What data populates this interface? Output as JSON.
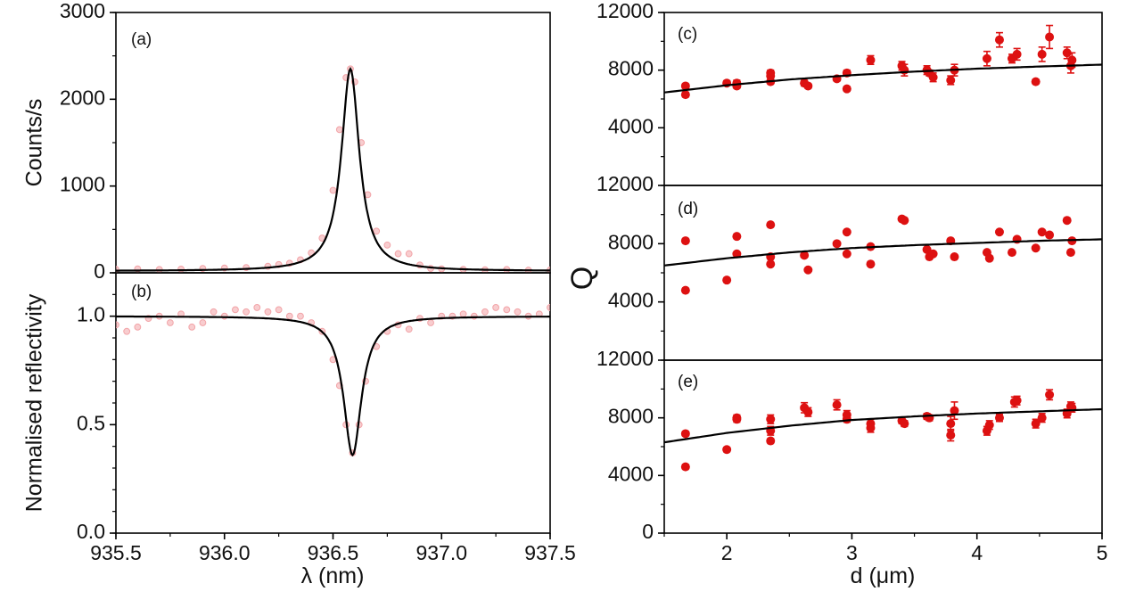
{
  "colors": {
    "data_red": "#dd1111",
    "data_pink": "#f2a4a8",
    "fit": "#000000",
    "axis": "#000000"
  },
  "chart_data": [
    {
      "id": "a",
      "panel_label": "(a)",
      "type": "line",
      "ylabel": "Counts/s",
      "xlim": [
        935.5,
        937.5
      ],
      "ylim": [
        0,
        3000
      ],
      "yticks": [
        0,
        1000,
        2000,
        3000
      ],
      "ytick_labels": [
        "0",
        "1000",
        "2000",
        "3000"
      ],
      "fit": {
        "model": "lorentzian",
        "center": 936.58,
        "fwhm": 0.1,
        "peak": 2350,
        "baseline": 20
      },
      "series": [
        {
          "name": "measured",
          "style": "pink circles",
          "x": [
            935.5,
            935.6,
            935.7,
            935.8,
            935.9,
            936.0,
            936.1,
            936.2,
            936.25,
            936.3,
            936.35,
            936.4,
            936.45,
            936.5,
            936.53,
            936.56,
            936.58,
            936.6,
            936.63,
            936.66,
            936.7,
            936.75,
            936.8,
            936.85,
            936.9,
            936.95,
            937.0,
            937.1,
            937.2,
            937.3,
            937.4,
            937.5
          ],
          "y": [
            40,
            45,
            38,
            42,
            50,
            55,
            60,
            75,
            95,
            110,
            150,
            230,
            400,
            950,
            1650,
            2250,
            2350,
            2200,
            1500,
            900,
            480,
            320,
            220,
            220,
            90,
            50,
            45,
            40,
            35,
            38,
            30,
            32
          ]
        }
      ]
    },
    {
      "id": "b",
      "panel_label": "(b)",
      "type": "line",
      "ylabel": "Normalised reflectivity",
      "xlabel": "λ (nm)",
      "xlim": [
        935.5,
        937.5
      ],
      "ylim": [
        0,
        1.2
      ],
      "yticks": [
        0,
        0.5,
        1.0
      ],
      "ytick_labels": [
        "0.0",
        "0.5",
        "1.0"
      ],
      "xticks": [
        935.5,
        936.0,
        936.5,
        937.0,
        937.5
      ],
      "xtick_labels": [
        "935.5",
        "936.0",
        "936.5",
        "937.0",
        "937.5"
      ],
      "fit": {
        "model": "lorentzian dip",
        "center": 936.59,
        "fwhm": 0.1,
        "depth": 0.64,
        "baseline": 1.0
      },
      "series": [
        {
          "name": "measured",
          "style": "pink circles",
          "x": [
            935.5,
            935.55,
            935.6,
            935.65,
            935.7,
            935.75,
            935.8,
            935.85,
            935.9,
            935.95,
            936.0,
            936.05,
            936.1,
            936.15,
            936.2,
            936.25,
            936.3,
            936.35,
            936.4,
            936.45,
            936.5,
            936.53,
            936.56,
            936.59,
            936.62,
            936.65,
            936.7,
            936.75,
            936.8,
            936.85,
            936.9,
            936.95,
            937.0,
            937.05,
            937.1,
            937.15,
            937.2,
            937.25,
            937.3,
            937.35,
            937.4,
            937.45,
            937.5
          ],
          "y": [
            0.96,
            0.93,
            0.95,
            0.99,
            1.0,
            0.97,
            1.01,
            0.95,
            0.97,
            1.02,
            1.0,
            1.03,
            1.02,
            1.04,
            1.02,
            1.03,
            1.0,
            1.0,
            0.97,
            0.93,
            0.8,
            0.68,
            0.5,
            0.37,
            0.5,
            0.7,
            0.86,
            0.93,
            0.96,
            0.94,
            0.99,
            0.97,
            1.0,
            1.0,
            1.01,
            1.0,
            1.02,
            1.04,
            1.03,
            1.02,
            1.0,
            1.01,
            1.04
          ]
        }
      ]
    },
    {
      "id": "c",
      "panel_label": "(c)",
      "type": "scatter",
      "xlim": [
        1.5,
        5
      ],
      "ylim": [
        0,
        12000
      ],
      "yticks": [
        4000,
        8000,
        12000
      ],
      "ytick_labels": [
        "4000",
        "8000",
        "12000"
      ],
      "fit": {
        "model": "exponential saturation",
        "x": [
          1.5,
          2,
          2.5,
          3,
          3.5,
          4,
          4.5,
          5
        ],
        "y": [
          6450,
          6950,
          7350,
          7650,
          7900,
          8100,
          8250,
          8380
        ]
      },
      "series": [
        {
          "name": "measured Q",
          "style": "red circles with error bars",
          "x": [
            1.67,
            1.67,
            2.0,
            2.08,
            2.08,
            2.35,
            2.35,
            2.35,
            2.62,
            2.65,
            2.88,
            2.96,
            2.96,
            3.15,
            3.4,
            3.42,
            3.6,
            3.62,
            3.65,
            3.79,
            3.82,
            4.08,
            4.18,
            4.28,
            4.32,
            4.47,
            4.52,
            4.58,
            4.72,
            4.75,
            4.76
          ],
          "y": [
            6900,
            6300,
            7100,
            7100,
            6900,
            7800,
            7600,
            7200,
            7100,
            6900,
            7400,
            6700,
            7800,
            8700,
            8300,
            8000,
            8000,
            7800,
            7500,
            7300,
            8000,
            8800,
            10100,
            8800,
            9100,
            7200,
            9100,
            10300,
            9200,
            8300,
            8700
          ],
          "err": [
            150,
            150,
            150,
            200,
            150,
            200,
            150,
            150,
            200,
            150,
            150,
            150,
            200,
            300,
            300,
            400,
            300,
            200,
            300,
            300,
            400,
            500,
            500,
            300,
            400,
            150,
            500,
            800,
            400,
            500,
            500
          ]
        }
      ]
    },
    {
      "id": "d",
      "panel_label": "(d)",
      "type": "scatter",
      "xlim": [
        1.5,
        5
      ],
      "ylim": [
        0,
        12000
      ],
      "yticks": [
        4000,
        8000,
        12000
      ],
      "ytick_labels": [
        "4000",
        "8000",
        "12000"
      ],
      "fit": {
        "model": "exponential saturation",
        "x": [
          1.5,
          2,
          2.5,
          3,
          3.5,
          4,
          4.5,
          5
        ],
        "y": [
          6500,
          7000,
          7400,
          7700,
          7900,
          8050,
          8200,
          8300
        ]
      },
      "series": [
        {
          "name": "measured Q",
          "style": "red circles",
          "x": [
            1.67,
            1.67,
            2.0,
            2.08,
            2.08,
            2.35,
            2.35,
            2.35,
            2.62,
            2.65,
            2.88,
            2.96,
            2.96,
            3.15,
            3.15,
            3.4,
            3.42,
            3.6,
            3.62,
            3.65,
            3.79,
            3.82,
            4.08,
            4.1,
            4.18,
            4.28,
            4.32,
            4.47,
            4.52,
            4.58,
            4.72,
            4.75,
            4.76
          ],
          "y": [
            8200,
            4800,
            5500,
            8500,
            7300,
            9300,
            7100,
            6600,
            7200,
            6200,
            8000,
            8800,
            7300,
            7800,
            6600,
            9700,
            9600,
            7600,
            7100,
            7300,
            8200,
            7100,
            7400,
            7000,
            8800,
            7400,
            8300,
            7700,
            8800,
            8600,
            9600,
            7400,
            8200
          ]
        }
      ]
    },
    {
      "id": "e",
      "panel_label": "(e)",
      "type": "scatter",
      "xlabel": "d (μm)",
      "xlim": [
        1.5,
        5
      ],
      "ylim": [
        0,
        12000
      ],
      "yticks": [
        0,
        4000,
        8000,
        12000
      ],
      "ytick_labels": [
        "0",
        "4000",
        "8000",
        "12000"
      ],
      "xticks": [
        2,
        3,
        4,
        5
      ],
      "xtick_labels": [
        "2",
        "3",
        "4",
        "5"
      ],
      "fit": {
        "model": "exponential saturation",
        "x": [
          1.5,
          2,
          2.5,
          3,
          3.5,
          4,
          4.5,
          5
        ],
        "y": [
          6300,
          6950,
          7450,
          7850,
          8100,
          8300,
          8450,
          8600
        ]
      },
      "series": [
        {
          "name": "measured Q",
          "style": "red circles with error bars",
          "x": [
            1.67,
            1.67,
            2.0,
            2.08,
            2.08,
            2.35,
            2.35,
            2.35,
            2.62,
            2.65,
            2.88,
            2.96,
            2.96,
            3.15,
            3.15,
            3.4,
            3.42,
            3.6,
            3.62,
            3.79,
            3.79,
            3.82,
            4.08,
            4.1,
            4.18,
            4.3,
            4.32,
            4.47,
            4.52,
            4.58,
            4.72,
            4.75,
            4.76
          ],
          "y": [
            6900,
            4600,
            5800,
            8000,
            7900,
            7900,
            7100,
            6400,
            8700,
            8400,
            8900,
            8200,
            7900,
            7600,
            7300,
            7800,
            7600,
            8100,
            8000,
            6800,
            7600,
            8500,
            7100,
            7500,
            8000,
            9100,
            9200,
            7600,
            8000,
            9600,
            8300,
            8800,
            8700
          ],
          "err": [
            150,
            150,
            150,
            200,
            200,
            300,
            300,
            150,
            350,
            300,
            350,
            300,
            200,
            300,
            300,
            200,
            200,
            200,
            200,
            400,
            500,
            600,
            300,
            300,
            250,
            350,
            300,
            300,
            300,
            350,
            300,
            300,
            300
          ]
        }
      ]
    }
  ],
  "shared_ylabel_right": "Q"
}
